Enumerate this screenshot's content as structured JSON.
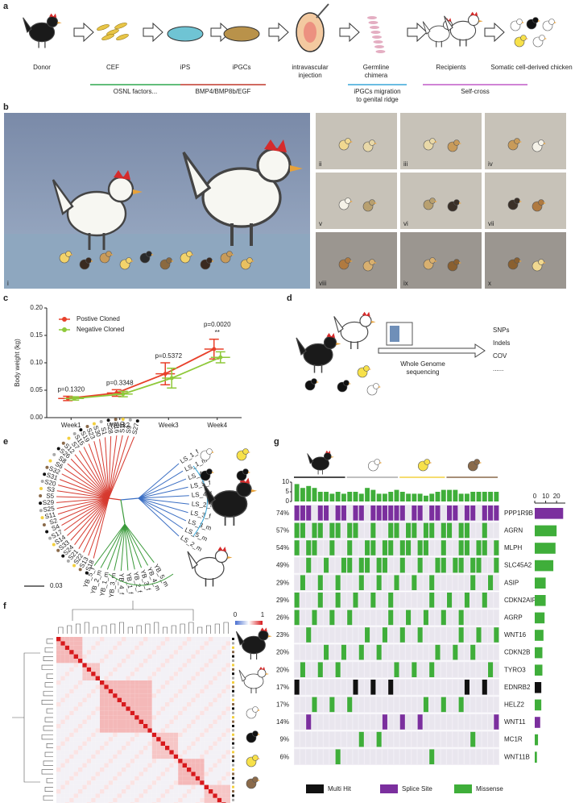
{
  "panel_labels": [
    "a",
    "b",
    "c",
    "d",
    "e",
    "f",
    "g"
  ],
  "workflow": {
    "steps": [
      [
        "Donor"
      ],
      [
        "CEF"
      ],
      [
        "iPS"
      ],
      [
        "iPGCs"
      ],
      [
        "intravascular",
        "injection"
      ],
      [
        "Germline",
        "chimera"
      ],
      [
        "Recipients"
      ],
      [
        "Somatic cell-derived chicken"
      ]
    ],
    "phases": [
      {
        "label": [
          "OSNL factors..."
        ],
        "color": "#2fa84f"
      },
      {
        "label": [
          "BMP4/BMP8b/EGF"
        ],
        "color": "#c0392b"
      },
      {
        "label": [
          "iPGCs migration",
          "to genital ridge"
        ],
        "color": "#3aa7d9"
      },
      {
        "label": [
          "Self-cross"
        ],
        "color": "#c05bc8"
      }
    ]
  },
  "photos": [
    "i",
    "ii",
    "iii",
    "iv",
    "v",
    "vi",
    "vii",
    "viii",
    "ix",
    "x"
  ],
  "chart_data": [
    {
      "type": "line",
      "y_label": "Body weight (kg)",
      "categories": [
        "Week1",
        "Week2",
        "Week3",
        "Week4"
      ],
      "series": [
        {
          "name": "Postive Cloned",
          "color": "#e8402a",
          "values": [
            0.035,
            0.045,
            0.08,
            0.125
          ],
          "errors": [
            0.004,
            0.006,
            0.02,
            0.018
          ]
        },
        {
          "name": "Negative Cloned",
          "color": "#8fc93a",
          "values": [
            0.035,
            0.043,
            0.072,
            0.11
          ],
          "errors": [
            0.003,
            0.005,
            0.018,
            0.01
          ]
        }
      ],
      "annotations": [
        "p=0.1320",
        "p=0.3348",
        "p=0.5372",
        "p=0.0020"
      ],
      "significance": [
        null,
        null,
        null,
        "**"
      ],
      "ylim": [
        0,
        0.2
      ],
      "yticks": [
        {
          "value": 0,
          "label": "0.00"
        },
        {
          "value": 0.05,
          "label": "0.05"
        },
        {
          "value": 0.1,
          "label": "0.10"
        },
        {
          "value": 0.15,
          "label": "0.15"
        },
        {
          "value": 0.2,
          "label": "0.20"
        }
      ],
      "legend": "upper-left"
    }
  ],
  "sequencing": {
    "method": [
      "Whole Genome",
      "sequencing"
    ],
    "outputs": [
      "SNPs",
      "Indels",
      "COV",
      "......"
    ]
  },
  "tree": {
    "scale": "0.03",
    "groups": [
      {
        "color": "#d63a2f",
        "leaves": [
          "S27",
          "S9",
          "S10",
          "S16",
          "S28",
          "S1",
          "S30",
          "S23",
          "S19",
          "S15",
          "S7",
          "S12",
          "S26",
          "S8",
          "S6",
          "S32",
          "S31",
          "S20",
          "S3",
          "S5",
          "S29",
          "S25",
          "S11",
          "S2",
          "S4",
          "S17",
          "S14",
          "S33",
          "S24",
          "S21",
          "S22",
          "S13",
          "S18"
        ]
      },
      {
        "color": "#3b6fc4",
        "leaves": [
          "LS_1_f",
          "LS_1_m",
          "LS_4_m",
          "LS_5_f",
          "LS_4_f",
          "LS_2_f",
          "LS_3_f",
          "LS_3_m",
          "LS_5_m",
          "LS_2_m"
        ]
      },
      {
        "color": "#3a9a3a",
        "leaves": [
          "YB_5_m",
          "YB_4_m",
          "YB_3_f",
          "YB_2_f",
          "YB_1_f",
          "YB_4_f",
          "YB_3_m",
          "YB_1_m",
          "YB_2_m",
          "YB_5_f"
        ]
      }
    ]
  },
  "heatmap": {
    "scale_ticks": [
      0,
      1
    ]
  },
  "oncoplot": {
    "types": [
      {
        "name": "Multi Hit",
        "color": "#111111"
      },
      {
        "name": "Splice Site",
        "color": "#7b2f9e"
      },
      {
        "name": "Missense",
        "color": "#3fae3a"
      }
    ],
    "sample_counts": [
      9,
      7,
      8,
      7,
      5,
      5,
      4,
      5,
      4,
      5,
      5,
      4,
      7,
      6,
      4,
      4,
      5,
      6,
      5,
      4,
      4,
      4,
      3,
      4,
      5,
      6,
      6,
      6,
      4,
      4,
      5,
      5,
      5,
      5,
      5
    ],
    "top_ylim": [
      0,
      10
    ],
    "top_yticks": [
      0,
      5,
      10
    ],
    "right_xlim": [
      0,
      28
    ],
    "right_xticks": [
      0,
      10,
      20
    ],
    "genes": [
      {
        "name": "PPP1R9B",
        "percent": 74,
        "percent_label": "74%",
        "count": 26,
        "type": 1
      },
      {
        "name": "AGRN",
        "percent": 57,
        "percent_label": "57%",
        "count": 20,
        "type": 2
      },
      {
        "name": "MLPH",
        "percent": 54,
        "percent_label": "54%",
        "count": 19,
        "type": 2
      },
      {
        "name": "SLC45A2",
        "percent": 49,
        "percent_label": "49%",
        "count": 17,
        "type": 2
      },
      {
        "name": "ASIP",
        "percent": 29,
        "percent_label": "29%",
        "count": 10,
        "type": 2
      },
      {
        "name": "CDKN2AIP",
        "percent": 29,
        "percent_label": "29%",
        "count": 10,
        "type": 2
      },
      {
        "name": "AGRP",
        "percent": 26,
        "percent_label": "26%",
        "count": 9,
        "type": 2
      },
      {
        "name": "WNT16",
        "percent": 23,
        "percent_label": "23%",
        "count": 8,
        "type": 2
      },
      {
        "name": "CDKN2B",
        "percent": 20,
        "percent_label": "20%",
        "count": 7,
        "type": 2
      },
      {
        "name": "TYRO3",
        "percent": 20,
        "percent_label": "20%",
        "count": 7,
        "type": 2
      },
      {
        "name": "EDNRB2",
        "percent": 17,
        "percent_label": "17%",
        "count": 6,
        "type": 0
      },
      {
        "name": "HELZ2",
        "percent": 17,
        "percent_label": "17%",
        "count": 6,
        "type": 2
      },
      {
        "name": "WNT11",
        "percent": 14,
        "percent_label": "14%",
        "count": 5,
        "type": 1
      },
      {
        "name": "MC1R",
        "percent": 9,
        "percent_label": "9%",
        "count": 3,
        "type": 2
      },
      {
        "name": "WNT11B",
        "percent": 6,
        "percent_label": "6%",
        "count": 2,
        "type": 2
      }
    ]
  }
}
